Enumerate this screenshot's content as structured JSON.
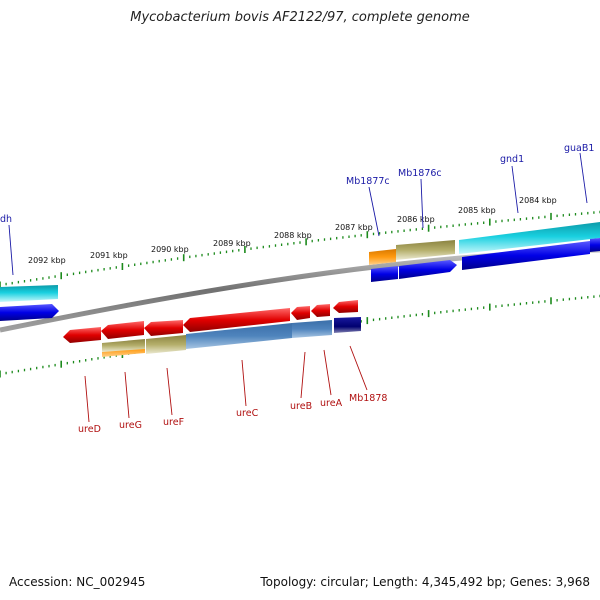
{
  "title": "Mycobacterium bovis AF2122/97, complete genome",
  "footer": {
    "accession": "Accession: NC_002945",
    "stats": "Topology: circular; Length: 4,345,492 bp; Genes: 3,968"
  },
  "colors": {
    "backbone": "#808080",
    "tick": "#1c8a1c",
    "forward_label": "#1a1aa6",
    "reverse_label": "#b01010",
    "cds_forward": "#0b0bdc",
    "cds_reverse": "#e00000",
    "gene_cyan": "#19c8d8",
    "gene_orange": "#ff9a10",
    "gene_khaki": "#b4ae6a",
    "gene_steel": "#4f84bd",
    "gene_navy": "#000080"
  },
  "ticks": [
    {
      "label": "2092 kbp"
    },
    {
      "label": "2091 kbp"
    },
    {
      "label": "2090 kbp"
    },
    {
      "label": "2089 kbp"
    },
    {
      "label": "2088 kbp"
    },
    {
      "label": "2087 kbp"
    },
    {
      "label": "2086 kbp"
    },
    {
      "label": "2085 kbp"
    },
    {
      "label": "2084 kbp"
    }
  ],
  "genes_forward": [
    {
      "label": "ndh"
    },
    {
      "label": "Mb1877c"
    },
    {
      "label": "Mb1876c"
    },
    {
      "label": "gnd1"
    },
    {
      "label": "guaB1"
    }
  ],
  "genes_reverse": [
    {
      "label": "ureD"
    },
    {
      "label": "ureG"
    },
    {
      "label": "ureF"
    },
    {
      "label": "ureC"
    },
    {
      "label": "ureB"
    },
    {
      "label": "ureA"
    },
    {
      "label": "Mb1878"
    }
  ]
}
